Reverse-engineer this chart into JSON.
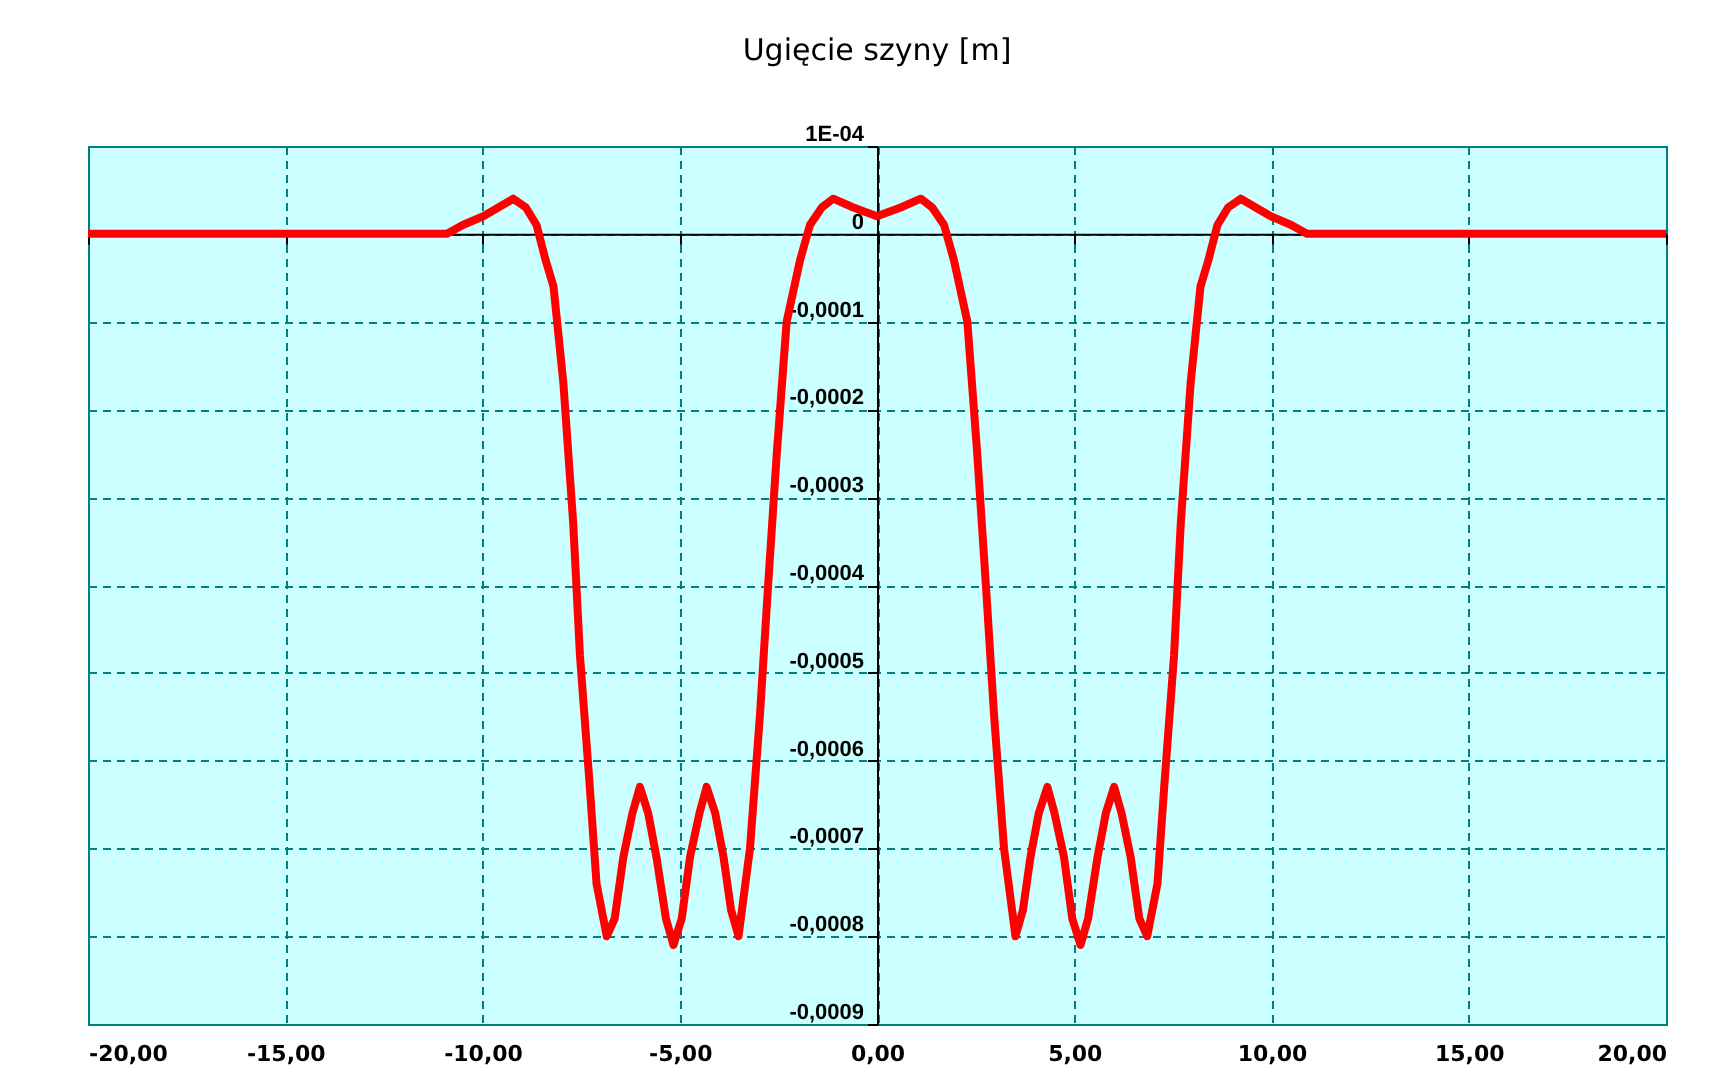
{
  "chart_data": {
    "type": "line",
    "title": "Ugięcie szyny [m]",
    "x": [
      -20,
      -15,
      -11.5,
      -10.9,
      -10.5,
      -9.98,
      -9.6,
      -9.22,
      -8.9,
      -8.63,
      -8.4,
      -8.2,
      -7.95,
      -7.7,
      -7.53,
      -7.28,
      -7.11,
      -6.85,
      -6.65,
      -6.43,
      -6.2,
      -6.01,
      -5.8,
      -5.59,
      -5.35,
      -5.16,
      -4.95,
      -4.74,
      -4.5,
      -4.32,
      -4.1,
      -3.89,
      -3.7,
      -3.51,
      -3.22,
      -2.97,
      -2.76,
      -2.54,
      -2.29,
      -1.95,
      -1.7,
      -1.4,
      -1.11,
      -0.6,
      0,
      0.6,
      1.11,
      1.4,
      1.7,
      1.95,
      2.29,
      2.54,
      2.76,
      2.97,
      3.22,
      3.51,
      3.7,
      3.89,
      4.1,
      4.32,
      4.5,
      4.74,
      4.95,
      5.16,
      5.35,
      5.59,
      5.8,
      6.01,
      6.2,
      6.43,
      6.65,
      6.85,
      7.11,
      7.28,
      7.53,
      7.7,
      7.95,
      8.2,
      8.4,
      8.63,
      8.9,
      9.22,
      9.6,
      9.98,
      10.5,
      10.9,
      11.5,
      15,
      20
    ],
    "series": [
      {
        "color": "#ff0000",
        "values": [
          0,
          0,
          0,
          0,
          1e-05,
          2e-05,
          3e-05,
          4e-05,
          3e-05,
          1e-05,
          -3e-05,
          -6e-05,
          -0.00017,
          -0.00033,
          -0.00048,
          -0.00063,
          -0.00074,
          -0.0008,
          -0.00078,
          -0.00071,
          -0.00066,
          -0.00063,
          -0.00066,
          -0.00071,
          -0.00078,
          -0.00081,
          -0.00078,
          -0.00071,
          -0.00066,
          -0.00063,
          -0.00066,
          -0.00071,
          -0.00077,
          -0.0008,
          -0.0007,
          -0.00055,
          -0.0004,
          -0.00025,
          -0.0001,
          -3e-05,
          1e-05,
          3e-05,
          4e-05,
          3e-05,
          2e-05,
          3e-05,
          4e-05,
          3e-05,
          1e-05,
          -3e-05,
          -0.0001,
          -0.00025,
          -0.0004,
          -0.00055,
          -0.0007,
          -0.0008,
          -0.00077,
          -0.00071,
          -0.00066,
          -0.00063,
          -0.00066,
          -0.00071,
          -0.00078,
          -0.00081,
          -0.00078,
          -0.00071,
          -0.00066,
          -0.00063,
          -0.00066,
          -0.00071,
          -0.00078,
          -0.0008,
          -0.00074,
          -0.00063,
          -0.00048,
          -0.00033,
          -0.00017,
          -6e-05,
          -3e-05,
          1e-05,
          3e-05,
          4e-05,
          3e-05,
          2e-05,
          1e-05,
          0,
          0,
          0,
          0
        ]
      }
    ],
    "xlim": [
      -20,
      20
    ],
    "xticks": [
      {
        "value": -20,
        "label": "-20,00"
      },
      {
        "value": -15,
        "label": "-15,00"
      },
      {
        "value": -10,
        "label": "-10,00"
      },
      {
        "value": -5,
        "label": "-5,00"
      },
      {
        "value": 0,
        "label": "0,00"
      },
      {
        "value": 5,
        "label": "5,00"
      },
      {
        "value": 10,
        "label": "10,00"
      },
      {
        "value": 15,
        "label": "15,00"
      },
      {
        "value": 20,
        "label": "20,00"
      }
    ],
    "ylim": [
      -0.0009,
      0.0001
    ],
    "yticks": [
      {
        "value": -0.0009,
        "label": "-0,0009"
      },
      {
        "value": -0.0008,
        "label": "-0,0008"
      },
      {
        "value": -0.0007,
        "label": "-0,0007"
      },
      {
        "value": -0.0006,
        "label": "-0,0006"
      },
      {
        "value": -0.0005,
        "label": "-0,0005"
      },
      {
        "value": -0.0004,
        "label": "-0,0004"
      },
      {
        "value": -0.0003,
        "label": "-0,0003"
      },
      {
        "value": -0.0002,
        "label": "-0,0002"
      },
      {
        "value": -0.0001,
        "label": "-0,0001"
      },
      0,
      {
        "value": 0.0001,
        "label": "1E-04"
      }
    ],
    "grid": true,
    "line_style": "solid",
    "marker": "none"
  }
}
